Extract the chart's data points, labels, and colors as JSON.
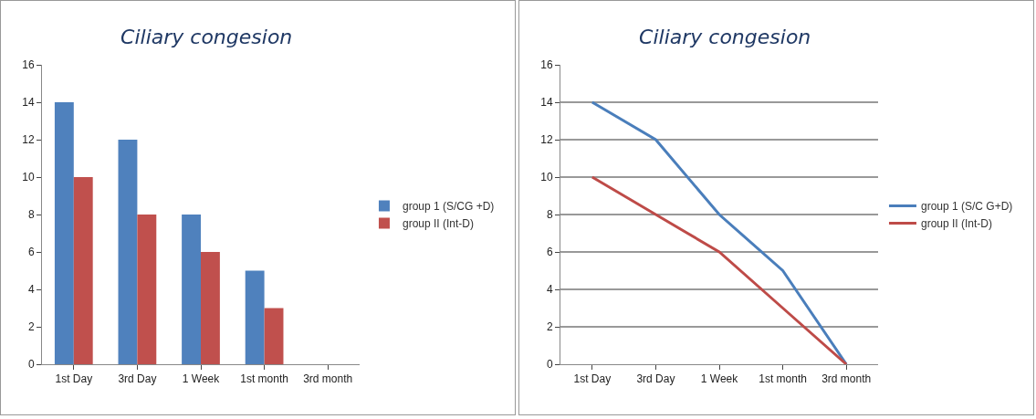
{
  "chart_data": [
    {
      "type": "bar",
      "title": "Ciliary congesion",
      "categories": [
        "1st Day",
        "3rd Day",
        "1 Week",
        "1st month",
        "3rd month"
      ],
      "series": [
        {
          "name": "group 1 (S/CG +D)",
          "color": "#4f81bd",
          "values": [
            14,
            12,
            8,
            5,
            0
          ]
        },
        {
          "name": "group II (Int-D)",
          "color": "#c0504d",
          "values": [
            10,
            8,
            6,
            3,
            0
          ]
        }
      ],
      "ylim": [
        0,
        16
      ],
      "yticks": [
        0,
        2,
        4,
        6,
        8,
        10,
        12,
        14,
        16
      ],
      "grid": false,
      "legend": "right"
    },
    {
      "type": "line",
      "title": "Ciliary congesion",
      "categories": [
        "1st Day",
        "3rd Day",
        "1 Week",
        "1st month",
        "3rd month"
      ],
      "series": [
        {
          "name": "group 1 (S/C G+D)",
          "color": "#4a7ebb",
          "values": [
            14,
            12,
            8,
            5,
            0
          ]
        },
        {
          "name": "group II (Int-D)",
          "color": "#be4b48",
          "values": [
            10,
            8,
            6,
            3,
            0
          ]
        }
      ],
      "ylim": [
        0,
        16
      ],
      "yticks": [
        0,
        2,
        4,
        6,
        8,
        10,
        12,
        14,
        16
      ],
      "grid": "y",
      "legend": "right",
      "marker": "none"
    }
  ]
}
